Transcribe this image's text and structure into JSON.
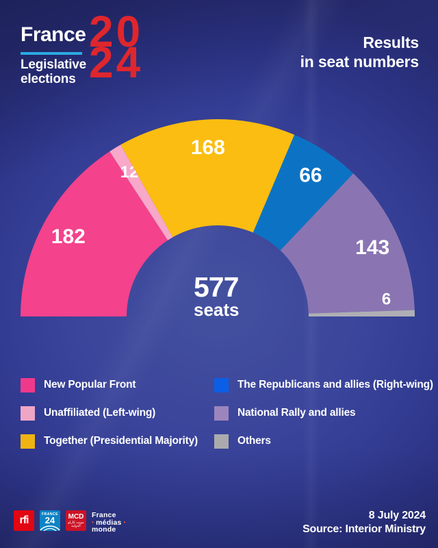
{
  "header": {
    "brand": {
      "name": "France",
      "subtitle_line1": "Legislative",
      "subtitle_line2": "elections",
      "year_top": "20",
      "year_bottom": "24",
      "underline_color": "#2baae2",
      "year_color": "#e0262d"
    },
    "title_line1": "Results",
    "title_line2": "in seat numbers"
  },
  "chart_data": {
    "type": "half-donut",
    "title": "Results in seat numbers",
    "total_seats": 577,
    "total_label": {
      "value": "577",
      "unit": "seats"
    },
    "legend_position": "bottom, two columns",
    "series": [
      {
        "label": "New Popular Front",
        "seats": 182,
        "color": "#f4428c",
        "legend_color": "#f1398b"
      },
      {
        "label": "Unaffiliated (Left-wing)",
        "seats": 12,
        "color": "#f8a8c8",
        "legend_color": "#efa5c6"
      },
      {
        "label": "Together (Presidential Majority)",
        "seats": 168,
        "color": "#fbbd11",
        "legend_color": "#efb414"
      },
      {
        "label": "The Republicans and allies (Right-wing)",
        "seats": 66,
        "color": "#0c73c4",
        "legend_color": "#0b5fe6"
      },
      {
        "label": "National Rally and allies",
        "seats": 143,
        "color": "#8a75b2",
        "legend_color": "#9c85bc"
      },
      {
        "label": "Others",
        "seats": 6,
        "color": "#afafb5",
        "legend_color": "#ababad"
      }
    ]
  },
  "footer": {
    "date": "8 July 2024",
    "source": "Source: Interior Ministry",
    "logos": {
      "rfi_text": "rfi",
      "rfi_bg": "#e30613",
      "f24_top": "FRANCE",
      "f24_num": "24",
      "f24_bg": "#0e83c4",
      "mcd_text": "MCD",
      "mcd_arabic": "مونت كارلو الدولية",
      "mcd_bg": "#cc1226",
      "fmm_line1": "France",
      "fmm_line2": "médias",
      "fmm_line3": "monde",
      "fmm_dot_color": "#e8502e"
    }
  }
}
